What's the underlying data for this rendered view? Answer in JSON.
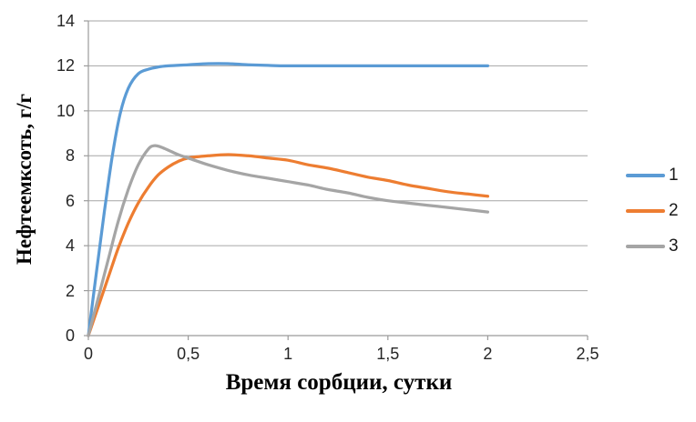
{
  "chart_data": {
    "type": "line",
    "title": "",
    "xlabel": "Время сорбции, сутки",
    "ylabel": "Нефтеемксоть, г/г",
    "xlim": [
      0,
      2.5
    ],
    "ylim": [
      0,
      14
    ],
    "x_ticks": [
      0,
      0.5,
      1,
      1.5,
      2,
      2.5
    ],
    "x_tick_labels": [
      "0",
      "0,5",
      "1",
      "1,5",
      "2",
      "2,5"
    ],
    "y_ticks": [
      0,
      2,
      4,
      6,
      8,
      10,
      12,
      14
    ],
    "y_tick_labels": [
      "0",
      "2",
      "4",
      "6",
      "8",
      "10",
      "12",
      "14"
    ],
    "grid": "horizontal",
    "legend_position": "right",
    "series": [
      {
        "name": "1",
        "color": "#5B9BD5",
        "points": [
          [
            0,
            0
          ],
          [
            0.04,
            2.8
          ],
          [
            0.08,
            5.5
          ],
          [
            0.12,
            8.0
          ],
          [
            0.16,
            9.9
          ],
          [
            0.2,
            11.0
          ],
          [
            0.25,
            11.65
          ],
          [
            0.3,
            11.85
          ],
          [
            0.35,
            11.95
          ],
          [
            0.4,
            12.0
          ],
          [
            0.5,
            12.05
          ],
          [
            0.6,
            12.1
          ],
          [
            0.7,
            12.1
          ],
          [
            0.8,
            12.05
          ],
          [
            0.9,
            12.02
          ],
          [
            1.0,
            12.0
          ],
          [
            1.25,
            12.0
          ],
          [
            1.5,
            12.0
          ],
          [
            1.75,
            12.0
          ],
          [
            2.0,
            12.0
          ]
        ]
      },
      {
        "name": "2",
        "color": "#ED7D31",
        "points": [
          [
            0,
            0
          ],
          [
            0.05,
            1.3
          ],
          [
            0.1,
            2.6
          ],
          [
            0.15,
            3.9
          ],
          [
            0.2,
            5.0
          ],
          [
            0.25,
            5.9
          ],
          [
            0.3,
            6.6
          ],
          [
            0.35,
            7.15
          ],
          [
            0.4,
            7.5
          ],
          [
            0.45,
            7.75
          ],
          [
            0.5,
            7.9
          ],
          [
            0.6,
            8.0
          ],
          [
            0.7,
            8.05
          ],
          [
            0.8,
            8.0
          ],
          [
            0.9,
            7.9
          ],
          [
            1.0,
            7.8
          ],
          [
            1.1,
            7.6
          ],
          [
            1.2,
            7.45
          ],
          [
            1.3,
            7.25
          ],
          [
            1.4,
            7.05
          ],
          [
            1.5,
            6.9
          ],
          [
            1.6,
            6.7
          ],
          [
            1.7,
            6.55
          ],
          [
            1.8,
            6.4
          ],
          [
            1.9,
            6.3
          ],
          [
            2.0,
            6.2
          ]
        ]
      },
      {
        "name": "3",
        "color": "#A5A5A5",
        "points": [
          [
            0,
            0
          ],
          [
            0.05,
            1.7
          ],
          [
            0.1,
            3.4
          ],
          [
            0.15,
            5.1
          ],
          [
            0.2,
            6.5
          ],
          [
            0.25,
            7.6
          ],
          [
            0.3,
            8.3
          ],
          [
            0.33,
            8.45
          ],
          [
            0.36,
            8.4
          ],
          [
            0.4,
            8.25
          ],
          [
            0.45,
            8.05
          ],
          [
            0.5,
            7.9
          ],
          [
            0.6,
            7.6
          ],
          [
            0.7,
            7.35
          ],
          [
            0.8,
            7.15
          ],
          [
            0.9,
            7.0
          ],
          [
            1.0,
            6.85
          ],
          [
            1.1,
            6.7
          ],
          [
            1.2,
            6.5
          ],
          [
            1.3,
            6.35
          ],
          [
            1.4,
            6.15
          ],
          [
            1.5,
            6.0
          ],
          [
            1.6,
            5.9
          ],
          [
            1.7,
            5.8
          ],
          [
            1.8,
            5.7
          ],
          [
            1.9,
            5.6
          ],
          [
            2.0,
            5.5
          ]
        ]
      }
    ]
  },
  "colors": {
    "background": "#FFFFFF",
    "grid": "#A6A6A6",
    "axis": "#9B9B9B",
    "tick": "#9B9B9B",
    "tick_text": "#262626",
    "title_text": "#000000"
  }
}
